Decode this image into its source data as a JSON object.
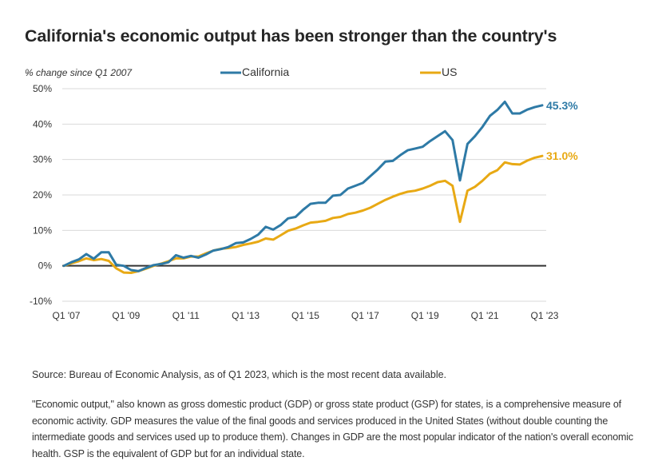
{
  "page": {
    "title": "California's economic output has been stronger than the country's",
    "source": "Source: Bureau of Economic Analysis, as of Q1 2023, which is the most recent data available.",
    "note": "\"Economic output,\" also known as gross domestic product (GDP) or gross state product (GSP) for states, is a comprehensive measure of economic activity. GDP measures the value of the final goods and services produced in the United States (without double counting the intermediate goods and services used up to produce them). Changes in GDP are the most popular indicator of the nation's overall economic health. GSP is the equivalent of GDP but for an individual state."
  },
  "chart_data": {
    "type": "line",
    "title": "California's economic output has been stronger than the country's",
    "ylabel": "% change since Q1 2007",
    "xlabel": "",
    "ylim": [
      -10,
      50
    ],
    "yticks": [
      50,
      40,
      30,
      20,
      10,
      0,
      -10
    ],
    "ytick_labels": [
      "50%",
      "40%",
      "30%",
      "20%",
      "10%",
      "0%",
      "-10%"
    ],
    "xtick_labels": [
      "Q1 '07",
      "Q1 '09",
      "Q1 '11",
      "Q1 '13",
      "Q1 '15",
      "Q1 '17",
      "Q1 '19",
      "Q1 '21",
      "Q1 '23"
    ],
    "xtick_quarter_index": [
      0,
      8,
      16,
      24,
      32,
      40,
      48,
      56,
      64
    ],
    "x_unit": "quarters since Q1 2007",
    "grid": true,
    "zero_line": true,
    "legend": {
      "placement": "top",
      "entries": [
        "California",
        "US"
      ]
    },
    "series": [
      {
        "name": "California",
        "color": "#2e7aa6",
        "end_label": "45.3%",
        "values": [
          0,
          1.0,
          1.8,
          3.3,
          2.0,
          3.8,
          3.8,
          0.3,
          0,
          -1.2,
          -1.5,
          -0.6,
          0.2,
          0.5,
          1.0,
          3.0,
          2.3,
          2.8,
          2.3,
          3.2,
          4.3,
          4.7,
          5.3,
          6.4,
          6.6,
          7.6,
          8.8,
          11.0,
          10.2,
          11.5,
          13.4,
          13.8,
          15.8,
          17.5,
          17.8,
          17.8,
          19.8,
          20.0,
          21.8,
          22.6,
          23.4,
          25.3,
          27.2,
          29.4,
          29.6,
          31.2,
          32.6,
          33.1,
          33.6,
          35.2,
          36.6,
          38.0,
          35.5,
          24.1,
          34.4,
          36.6,
          39.2,
          42.3,
          44.0,
          46.3,
          43.0,
          43.0,
          44.1,
          44.8,
          45.3
        ]
      },
      {
        "name": "US",
        "color": "#e8a914",
        "end_label": "31.0%",
        "values": [
          0,
          0.7,
          1.3,
          2.1,
          1.6,
          1.9,
          1.4,
          -0.7,
          -1.9,
          -2.0,
          -1.5,
          -0.8,
          0,
          0.6,
          1.3,
          2.1,
          2.1,
          2.6,
          2.6,
          3.5,
          4.3,
          4.8,
          5.0,
          5.3,
          5.9,
          6.3,
          6.8,
          7.7,
          7.4,
          8.6,
          9.9,
          10.5,
          11.4,
          12.2,
          12.4,
          12.7,
          13.5,
          13.8,
          14.6,
          15.0,
          15.6,
          16.4,
          17.5,
          18.6,
          19.5,
          20.3,
          20.9,
          21.2,
          21.8,
          22.6,
          23.6,
          24.0,
          22.6,
          12.4,
          21.2,
          22.3,
          24.0,
          26.0,
          27.0,
          29.2,
          28.7,
          28.6,
          29.7,
          30.5,
          31.0
        ]
      }
    ]
  }
}
